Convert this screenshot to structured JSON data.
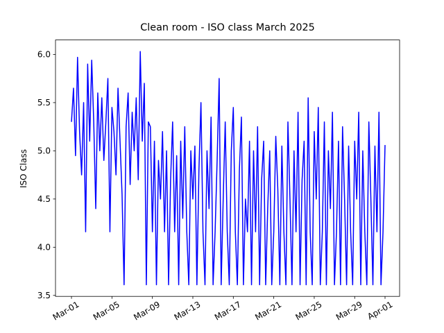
{
  "chart_data": {
    "type": "line",
    "title": "Clean room - ISO class March 2025",
    "y_label": "ISO Class",
    "xlim": [
      -1.58,
      32.44
    ],
    "ylim": [
      3.49,
      6.15
    ],
    "xticks": [
      {
        "value": 0,
        "label": "Mar-01"
      },
      {
        "value": 4,
        "label": "Mar-05"
      },
      {
        "value": 8,
        "label": "Mar-09"
      },
      {
        "value": 12,
        "label": "Mar-13"
      },
      {
        "value": 16,
        "label": "Mar-17"
      },
      {
        "value": 20,
        "label": "Mar-21"
      },
      {
        "value": 24,
        "label": "Mar-25"
      },
      {
        "value": 28,
        "label": "Mar-29"
      },
      {
        "value": 31,
        "label": "Apr-01"
      }
    ],
    "yticks": [
      3.5,
      {
        "value": 4.0,
        "label": "4.0"
      },
      4.5,
      {
        "value": 5.0,
        "label": "5.0"
      },
      5.5,
      {
        "value": 6.0,
        "label": "6.0"
      }
    ],
    "series": [
      {
        "color": "#0000ff",
        "x": [
          0,
          0.2,
          0.4,
          0.6,
          0.8,
          1.0,
          1.2,
          1.4,
          1.6,
          1.8,
          2.0,
          2.2,
          2.4,
          2.6,
          2.8,
          3.0,
          3.2,
          3.4,
          3.6,
          3.8,
          4.0,
          4.2,
          4.4,
          4.6,
          4.8,
          5.0,
          5.2,
          5.4,
          5.6,
          5.8,
          6.0,
          6.2,
          6.4,
          6.6,
          6.8,
          7.0,
          7.2,
          7.4,
          7.6,
          7.8,
          8.0,
          8.2,
          8.4,
          8.6,
          8.8,
          9.0,
          9.2,
          9.4,
          9.6,
          9.8,
          10.0,
          10.2,
          10.4,
          10.6,
          10.8,
          11.0,
          11.2,
          11.4,
          11.6,
          11.8,
          12.0,
          12.2,
          12.4,
          12.6,
          12.8,
          13.0,
          13.2,
          13.4,
          13.6,
          13.8,
          14.0,
          14.2,
          14.4,
          14.6,
          14.8,
          15.0,
          15.2,
          15.4,
          15.6,
          15.8,
          16.0,
          16.2,
          16.4,
          16.6,
          16.8,
          17.0,
          17.2,
          17.4,
          17.6,
          17.8,
          18.0,
          18.2,
          18.4,
          18.6,
          18.8,
          19.0,
          19.2,
          19.4,
          19.6,
          19.8,
          20.0,
          20.2,
          20.4,
          20.6,
          20.8,
          21.0,
          21.2,
          21.4,
          21.6,
          21.8,
          22.0,
          22.2,
          22.4,
          22.6,
          22.8,
          23.0,
          23.2,
          23.4,
          23.6,
          23.8,
          24.0,
          24.2,
          24.4,
          24.6,
          24.8,
          25.0,
          25.2,
          25.4,
          25.6,
          25.8,
          26.0,
          26.2,
          26.4,
          26.6,
          26.8,
          27.0,
          27.2,
          27.4,
          27.6,
          27.8,
          28.0,
          28.2,
          28.4,
          28.6,
          28.8,
          29.0,
          29.2,
          29.4,
          29.6,
          29.8,
          30.0,
          30.2,
          30.4,
          30.6,
          30.8,
          31.0
        ],
        "values": [
          5.3,
          5.65,
          4.95,
          5.97,
          5.2,
          4.75,
          5.5,
          4.16,
          5.9,
          5.1,
          5.94,
          5.3,
          4.4,
          5.6,
          5.0,
          5.55,
          4.9,
          5.3,
          5.75,
          4.16,
          5.45,
          5.2,
          4.75,
          5.65,
          5.1,
          4.55,
          3.61,
          5.25,
          5.6,
          4.65,
          5.4,
          5.0,
          5.55,
          4.7,
          6.03,
          5.1,
          5.7,
          3.61,
          5.3,
          5.25,
          4.16,
          5.1,
          3.61,
          4.9,
          4.5,
          5.2,
          4.16,
          5.0,
          3.61,
          4.7,
          5.3,
          4.16,
          4.95,
          3.61,
          5.1,
          4.3,
          5.25,
          4.16,
          3.61,
          5.0,
          4.5,
          5.05,
          3.61,
          4.8,
          5.5,
          4.16,
          3.61,
          5.0,
          4.4,
          5.35,
          3.61,
          4.16,
          4.9,
          5.75,
          3.61,
          4.5,
          5.3,
          4.16,
          3.61,
          5.0,
          5.45,
          4.16,
          3.61,
          4.8,
          5.35,
          3.61,
          4.5,
          4.16,
          5.1,
          3.61,
          5.0,
          4.16,
          5.25,
          3.61,
          4.7,
          5.1,
          3.61,
          4.4,
          5.0,
          3.61,
          4.16,
          5.15,
          4.6,
          3.61,
          5.05,
          4.16,
          3.61,
          5.3,
          4.5,
          3.61,
          5.0,
          4.16,
          5.4,
          3.61,
          4.7,
          5.1,
          3.61,
          5.55,
          4.16,
          3.61,
          5.2,
          4.5,
          5.45,
          3.61,
          4.16,
          5.3,
          3.61,
          5.0,
          4.4,
          5.4,
          3.61,
          4.16,
          5.1,
          3.61,
          5.25,
          4.5,
          3.61,
          5.05,
          4.16,
          3.61,
          5.1,
          4.5,
          5.4,
          3.61,
          5.0,
          4.16,
          3.61,
          5.3,
          4.5,
          3.61,
          5.05,
          4.16,
          5.4,
          3.61,
          4.16,
          5.06
        ]
      }
    ]
  }
}
